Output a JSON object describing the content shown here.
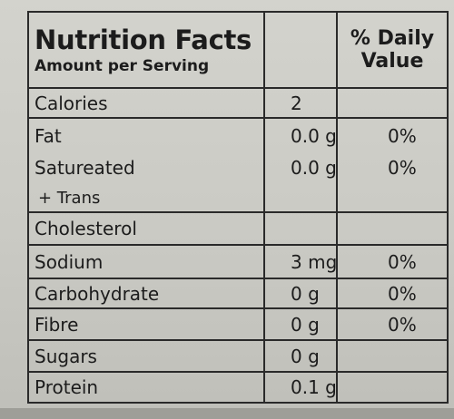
{
  "header": {
    "title": "Nutrition Facts",
    "subtitle": "Amount per Serving",
    "daily_value_line1": "% Daily",
    "daily_value_line2": "Value"
  },
  "rows": [
    {
      "name": "Calories",
      "amount": "2",
      "daily": ""
    },
    {
      "name": "Fat",
      "amount": "0.0 g",
      "daily": "0%"
    },
    {
      "name": "Satureated",
      "amount": "0.0 g",
      "daily": "0%"
    },
    {
      "name": "+ Trans",
      "amount": "",
      "daily": ""
    },
    {
      "name": "Cholesterol",
      "amount": "",
      "daily": ""
    },
    {
      "name": "Sodium",
      "amount": "3 mg",
      "daily": "0%"
    },
    {
      "name": "Carbohydrate",
      "amount": "0 g",
      "daily": "0%"
    },
    {
      "name": "Fibre",
      "amount": "0 g",
      "daily": "0%"
    },
    {
      "name": "Sugars",
      "amount": "0 g",
      "daily": ""
    },
    {
      "name": "Protein",
      "amount": "0.1 g",
      "daily": ""
    }
  ]
}
